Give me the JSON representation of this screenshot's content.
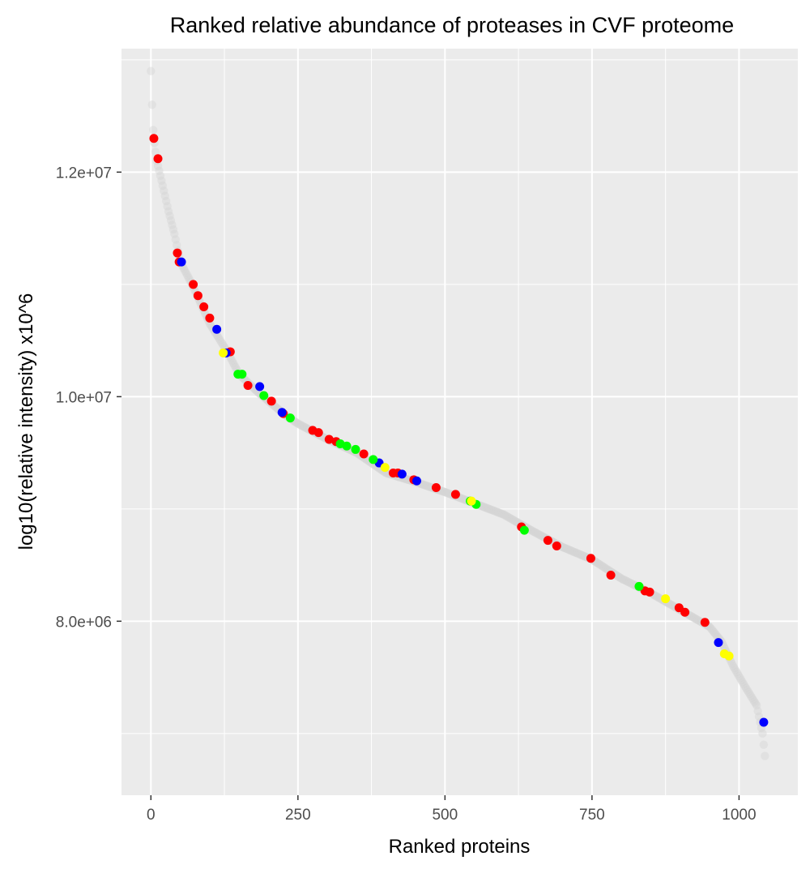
{
  "chart_data": {
    "type": "scatter",
    "title": "Ranked relative abundance of proteases in CVF proteome",
    "xlabel": "Ranked proteins",
    "ylabel": "log10(relative intensity) x10^6",
    "xlim": [
      -50,
      1100
    ],
    "ylim": [
      6450000.0,
      13100000.0
    ],
    "x_ticks": [
      {
        "value": 0,
        "label": "0"
      },
      {
        "value": 250,
        "label": "250"
      },
      {
        "value": 500,
        "label": "500"
      },
      {
        "value": 750,
        "label": "750"
      },
      {
        "value": 1000,
        "label": "1000"
      }
    ],
    "y_ticks": [
      {
        "value": 8000000,
        "label": "8.0e+06"
      },
      {
        "value": 10000000,
        "label": "1.0e+07"
      },
      {
        "value": 12000000,
        "label": "1.2e+07"
      }
    ],
    "y_minor": [
      7000000,
      9000000,
      11000000,
      13000000
    ],
    "x_minor": [
      125,
      375,
      625,
      875
    ],
    "grid": true,
    "background": "#ebebeb",
    "grid_color": "#ffffff",
    "series_colors": {
      "all": "#d4d4d4",
      "red": "#ff0000",
      "blue": "#0000ff",
      "green": "#00ff00",
      "yellow": "#ffff00"
    },
    "curve": [
      [
        0,
        12.9
      ],
      [
        3,
        12.45
      ],
      [
        5,
        12.3
      ],
      [
        10,
        12.1
      ],
      [
        20,
        11.88
      ],
      [
        30,
        11.65
      ],
      [
        40,
        11.45
      ],
      [
        50,
        11.2
      ],
      [
        70,
        11.0
      ],
      [
        100,
        10.65
      ],
      [
        130,
        10.4
      ],
      [
        150,
        10.2
      ],
      [
        180,
        10.05
      ],
      [
        200,
        9.96
      ],
      [
        230,
        9.83
      ],
      [
        250,
        9.76
      ],
      [
        300,
        9.62
      ],
      [
        350,
        9.5
      ],
      [
        400,
        9.32
      ],
      [
        450,
        9.24
      ],
      [
        500,
        9.15
      ],
      [
        550,
        9.05
      ],
      [
        600,
        8.95
      ],
      [
        650,
        8.8
      ],
      [
        700,
        8.66
      ],
      [
        750,
        8.55
      ],
      [
        800,
        8.38
      ],
      [
        850,
        8.25
      ],
      [
        900,
        8.1
      ],
      [
        950,
        7.95
      ],
      [
        970,
        7.82
      ],
      [
        990,
        7.6
      ],
      [
        1010,
        7.42
      ],
      [
        1030,
        7.25
      ],
      [
        1040,
        7.0
      ],
      [
        1045,
        6.75
      ]
    ],
    "series": [
      {
        "name": "red",
        "points": [
          [
            5,
            12.3
          ],
          [
            12,
            12.12
          ],
          [
            45,
            11.28
          ],
          [
            48,
            11.2
          ],
          [
            72,
            11.0
          ],
          [
            80,
            10.9
          ],
          [
            90,
            10.8
          ],
          [
            100,
            10.7
          ],
          [
            135,
            10.4
          ],
          [
            165,
            10.1
          ],
          [
            205,
            9.96
          ],
          [
            225,
            9.85
          ],
          [
            275,
            9.7
          ],
          [
            285,
            9.68
          ],
          [
            303,
            9.62
          ],
          [
            315,
            9.6
          ],
          [
            362,
            9.49
          ],
          [
            412,
            9.32
          ],
          [
            420,
            9.32
          ],
          [
            447,
            9.26
          ],
          [
            485,
            9.19
          ],
          [
            518,
            9.13
          ],
          [
            630,
            8.84
          ],
          [
            675,
            8.72
          ],
          [
            690,
            8.67
          ],
          [
            748,
            8.56
          ],
          [
            782,
            8.41
          ],
          [
            840,
            8.27
          ],
          [
            848,
            8.26
          ],
          [
            898,
            8.12
          ],
          [
            908,
            8.08
          ],
          [
            942,
            7.99
          ]
        ]
      },
      {
        "name": "blue",
        "points": [
          [
            52,
            11.2
          ],
          [
            112,
            10.6
          ],
          [
            128,
            10.39
          ],
          [
            185,
            10.09
          ],
          [
            223,
            9.86
          ],
          [
            388,
            9.41
          ],
          [
            427,
            9.31
          ],
          [
            452,
            9.25
          ],
          [
            965,
            7.81
          ],
          [
            1042,
            7.1
          ]
        ]
      },
      {
        "name": "green",
        "points": [
          [
            148,
            10.2
          ],
          [
            155,
            10.2
          ],
          [
            192,
            10.01
          ],
          [
            237,
            9.81
          ],
          [
            322,
            9.58
          ],
          [
            333,
            9.56
          ],
          [
            348,
            9.53
          ],
          [
            378,
            9.44
          ],
          [
            543,
            9.07
          ],
          [
            553,
            9.04
          ],
          [
            635,
            8.81
          ],
          [
            830,
            8.31
          ]
        ]
      },
      {
        "name": "yellow",
        "points": [
          [
            123,
            10.39
          ],
          [
            398,
            9.37
          ],
          [
            545,
            9.07
          ],
          [
            875,
            8.2
          ],
          [
            975,
            7.71
          ],
          [
            983,
            7.69
          ]
        ]
      }
    ]
  }
}
